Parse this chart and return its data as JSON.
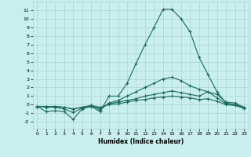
{
  "xlabel": "Humidex (Indice chaleur)",
  "bg_color": "#c8eeee",
  "grid_color": "#aed4d4",
  "line_color": "#1a6b5a",
  "xlim": [
    -0.5,
    23.5
  ],
  "ylim": [
    -2.8,
    12.0
  ],
  "xticks": [
    0,
    1,
    2,
    3,
    4,
    5,
    6,
    7,
    8,
    9,
    10,
    11,
    12,
    13,
    14,
    15,
    16,
    17,
    18,
    19,
    20,
    21,
    22,
    23
  ],
  "yticks": [
    -2,
    -1,
    0,
    1,
    2,
    3,
    4,
    5,
    6,
    7,
    8,
    9,
    10,
    11
  ],
  "series1_y": [
    -0.2,
    -0.8,
    -0.7,
    -0.8,
    -1.7,
    -0.5,
    -0.2,
    -0.8,
    1.0,
    1.0,
    2.5,
    4.8,
    7.0,
    9.0,
    11.1,
    11.1,
    10.0,
    8.5,
    5.5,
    3.5,
    1.5,
    0.2,
    0.0,
    -0.4
  ],
  "series2_y": [
    -0.2,
    -0.3,
    -0.3,
    -0.5,
    -0.9,
    -0.4,
    -0.1,
    -0.6,
    0.2,
    0.5,
    1.0,
    1.5,
    2.0,
    2.5,
    3.0,
    3.2,
    2.8,
    2.2,
    1.8,
    1.5,
    1.2,
    0.3,
    0.2,
    -0.3
  ],
  "series3_y": [
    -0.2,
    -0.2,
    -0.2,
    -0.3,
    -0.5,
    -0.3,
    -0.1,
    -0.4,
    0.1,
    0.3,
    0.5,
    0.7,
    1.0,
    1.2,
    1.4,
    1.6,
    1.4,
    1.2,
    1.0,
    1.5,
    0.8,
    0.1,
    0.0,
    -0.3
  ],
  "series4_y": [
    -0.2,
    -0.2,
    -0.2,
    -0.3,
    -0.5,
    -0.3,
    -0.1,
    -0.3,
    0.0,
    0.1,
    0.3,
    0.5,
    0.6,
    0.8,
    0.9,
    1.0,
    0.9,
    0.8,
    0.6,
    0.7,
    0.4,
    0.0,
    -0.1,
    -0.4
  ]
}
